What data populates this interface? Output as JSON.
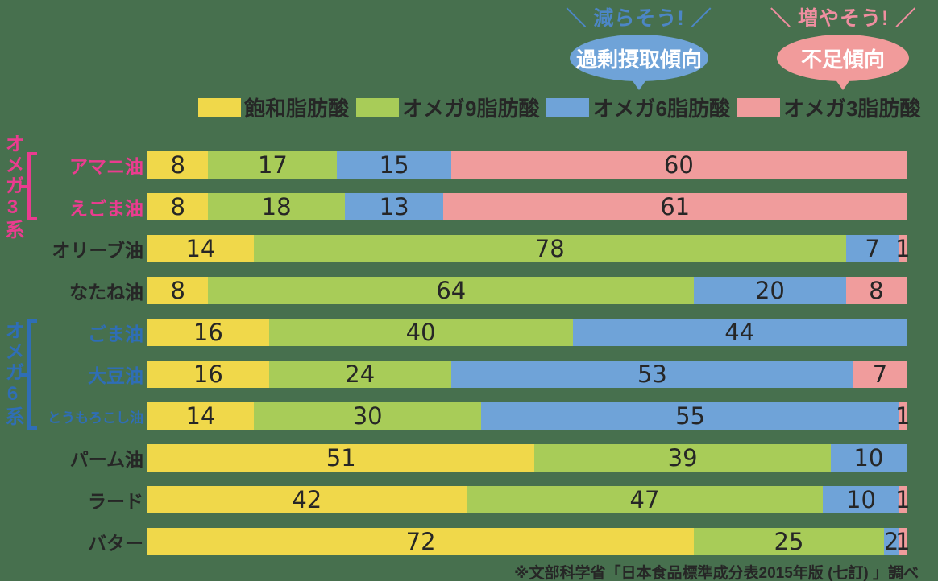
{
  "colors": {
    "background": "#47704E",
    "saturated": "#F0D84A",
    "omega9": "#A8CC58",
    "omega6": "#6FA3D8",
    "omega3": "#F09C9C",
    "number_text": "#262626",
    "omega3_group": "#EA3C8F",
    "omega6_group": "#2F6EB6",
    "dark_label": "#262626"
  },
  "callouts": {
    "reduce": {
      "hint": "減らそう!",
      "bubble": "過剰摂取傾向",
      "hint_color": "#4C86C6",
      "bubble_color": "#6FA3D8",
      "slash_left": "＼",
      "slash_right": "／"
    },
    "increase": {
      "hint": "増やそう!",
      "bubble": "不足傾向",
      "hint_color": "#F08EA0",
      "bubble_color": "#F19B9B",
      "slash_left": "＼",
      "slash_right": "／"
    }
  },
  "legend": [
    {
      "label": "飽和脂肪酸",
      "color": "#F0D84A"
    },
    {
      "label": "オメガ9脂肪酸",
      "color": "#A8CC58"
    },
    {
      "label": "オメガ6脂肪酸",
      "color": "#6FA3D8"
    },
    {
      "label": "オメガ3脂肪酸",
      "color": "#F09C9C"
    }
  ],
  "groups": [
    {
      "label": "オメガ3系",
      "color": "#EA3C8F"
    },
    {
      "label": "オメガ6系",
      "color": "#2F6EB6"
    }
  ],
  "chart_data": {
    "type": "bar",
    "stacked": true,
    "orientation": "horizontal",
    "unit": "percent",
    "xlim": [
      0,
      100
    ],
    "series_names": [
      "飽和脂肪酸",
      "オメガ9脂肪酸",
      "オメガ6脂肪酸",
      "オメガ3脂肪酸"
    ],
    "series_colors": [
      "#F0D84A",
      "#A8CC58",
      "#6FA3D8",
      "#F09C9C"
    ],
    "rows": [
      {
        "label": "アマニ油",
        "values": [
          8,
          17,
          15,
          60
        ],
        "label_color": "#EA3C8F",
        "small_label": false
      },
      {
        "label": "えごま油",
        "values": [
          8,
          18,
          13,
          61
        ],
        "label_color": "#EA3C8F",
        "small_label": false
      },
      {
        "label": "オリーブ油",
        "values": [
          14,
          78,
          7,
          1
        ],
        "label_color": "#262626",
        "small_label": false
      },
      {
        "label": "なたね油",
        "values": [
          8,
          64,
          20,
          8
        ],
        "label_color": "#262626",
        "small_label": false
      },
      {
        "label": "ごま油",
        "values": [
          16,
          40,
          44,
          0
        ],
        "label_color": "#2F6EB6",
        "small_label": false
      },
      {
        "label": "大豆油",
        "values": [
          16,
          24,
          53,
          7
        ],
        "label_color": "#2F6EB6",
        "small_label": false
      },
      {
        "label": "とうもろこし油",
        "values": [
          14,
          30,
          55,
          1
        ],
        "label_color": "#2F6EB6",
        "small_label": true
      },
      {
        "label": "パーム油",
        "values": [
          51,
          39,
          10,
          0
        ],
        "label_color": "#262626",
        "small_label": false
      },
      {
        "label": "ラード",
        "values": [
          42,
          47,
          10,
          1
        ],
        "label_color": "#262626",
        "small_label": false
      },
      {
        "label": "バター",
        "values": [
          72,
          25,
          2,
          1
        ],
        "label_color": "#262626",
        "small_label": false
      }
    ]
  },
  "source": "※文部科学省「日本食品標準成分表2015年版 (七訂) 」調べ"
}
